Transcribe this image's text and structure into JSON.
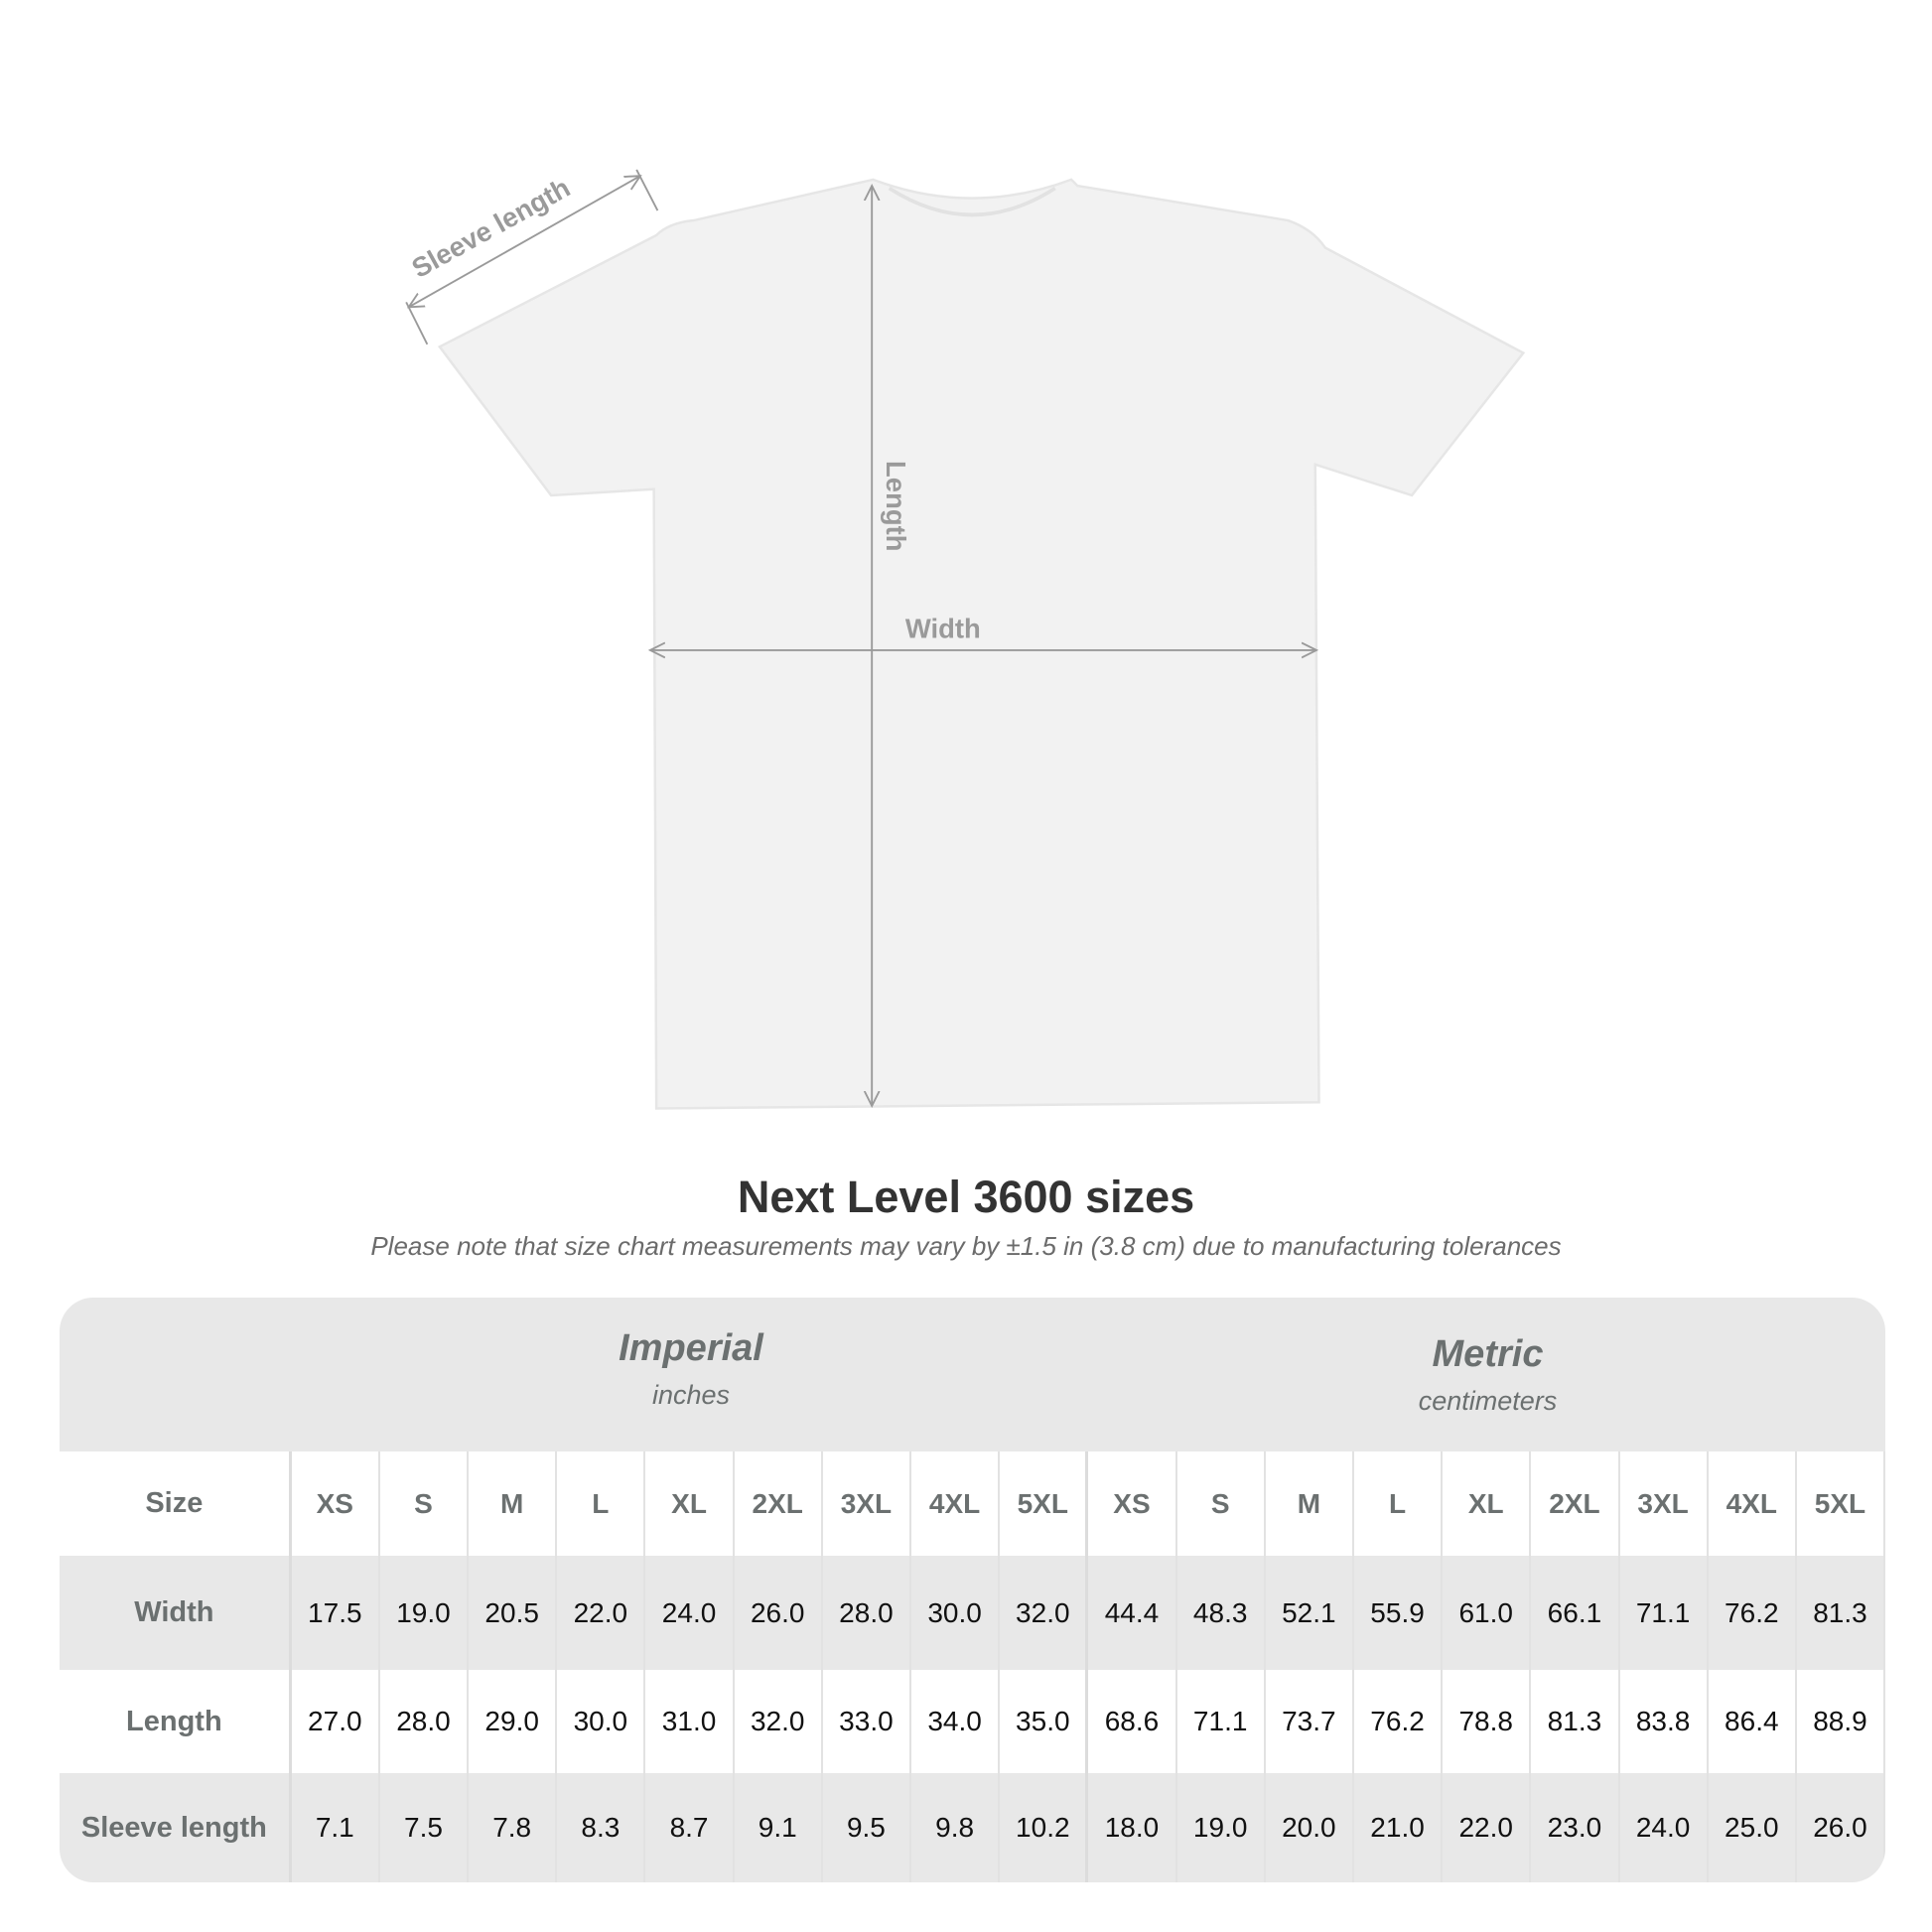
{
  "diagram": {
    "labels": {
      "sleeve": "Sleeve length",
      "length": "Length",
      "width": "Width"
    },
    "shirt_color": "#f2f2f2",
    "arrow_color": "#9a9a9a"
  },
  "title": "Next Level 3600 sizes",
  "subtitle": "Please note that size chart measurements may vary by ±1.5 in (3.8 cm) due to manufacturing tolerances",
  "table": {
    "imperial": {
      "name": "Imperial",
      "unit": "inches"
    },
    "metric": {
      "name": "Metric",
      "unit": "centimeters"
    },
    "size_label": "Size",
    "sizes": [
      "XS",
      "S",
      "M",
      "L",
      "XL",
      "2XL",
      "3XL",
      "4XL",
      "5XL"
    ],
    "rows": [
      {
        "label": "Width",
        "imperial": [
          "17.5",
          "19.0",
          "20.5",
          "22.0",
          "24.0",
          "26.0",
          "28.0",
          "30.0",
          "32.0"
        ],
        "metric": [
          "44.4",
          "48.3",
          "52.1",
          "55.9",
          "61.0",
          "66.1",
          "71.1",
          "76.2",
          "81.3"
        ]
      },
      {
        "label": "Length",
        "imperial": [
          "27.0",
          "28.0",
          "29.0",
          "30.0",
          "31.0",
          "32.0",
          "33.0",
          "34.0",
          "35.0"
        ],
        "metric": [
          "68.6",
          "71.1",
          "73.7",
          "76.2",
          "78.8",
          "81.3",
          "83.8",
          "86.4",
          "88.9"
        ]
      },
      {
        "label": "Sleeve length",
        "imperial": [
          "7.1",
          "7.5",
          "7.8",
          "8.3",
          "8.7",
          "9.1",
          "9.5",
          "9.8",
          "10.2"
        ],
        "metric": [
          "18.0",
          "19.0",
          "20.0",
          "21.0",
          "22.0",
          "23.0",
          "24.0",
          "25.0",
          "26.0"
        ]
      }
    ]
  }
}
